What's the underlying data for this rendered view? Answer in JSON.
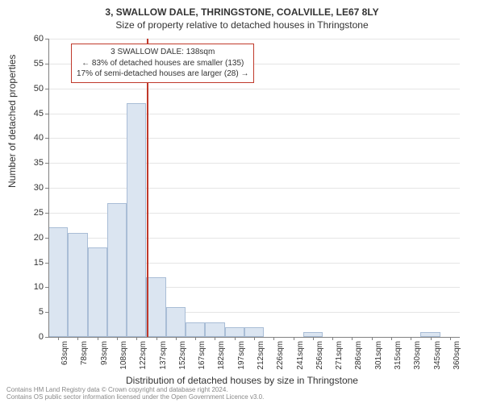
{
  "title": {
    "line1": "3, SWALLOW DALE, THRINGSTONE, COALVILLE, LE67 8LY",
    "line2": "Size of property relative to detached houses in Thringstone"
  },
  "chart": {
    "type": "histogram",
    "ylabel": "Number of detached properties",
    "xlabel": "Distribution of detached houses by size in Thringstone",
    "ylim": [
      0,
      60
    ],
    "ytick_step": 5,
    "xcategories": [
      "63sqm",
      "78sqm",
      "93sqm",
      "108sqm",
      "122sqm",
      "137sqm",
      "152sqm",
      "167sqm",
      "182sqm",
      "197sqm",
      "212sqm",
      "226sqm",
      "241sqm",
      "256sqm",
      "271sqm",
      "286sqm",
      "301sqm",
      "315sqm",
      "330sqm",
      "345sqm",
      "360sqm"
    ],
    "values": [
      22,
      21,
      18,
      27,
      47,
      12,
      6,
      3,
      3,
      2,
      2,
      0,
      0,
      1,
      0,
      0,
      0,
      0,
      0,
      1,
      0
    ],
    "bar_fill": "#dbe5f1",
    "bar_border": "#a9bdd6",
    "grid_color": "#e5e5e5",
    "axis_color": "#808080",
    "background_color": "#ffffff",
    "text_color": "#333333",
    "label_fontsize": 12,
    "tick_fontsize": 11,
    "xtick_fontsize": 10,
    "marker": {
      "position_category_index": 5,
      "color": "#c0392b"
    }
  },
  "annotation": {
    "line1": "3 SWALLOW DALE: 138sqm",
    "line2": "← 83% of detached houses are smaller (135)",
    "line3": "17% of semi-detached houses are larger (28) →",
    "border_color": "#c0392b",
    "fontsize": 10
  },
  "footer": {
    "line1": "Contains HM Land Registry data © Crown copyright and database right 2024.",
    "line2": "Contains OS public sector information licensed under the Open Government Licence v3.0."
  }
}
